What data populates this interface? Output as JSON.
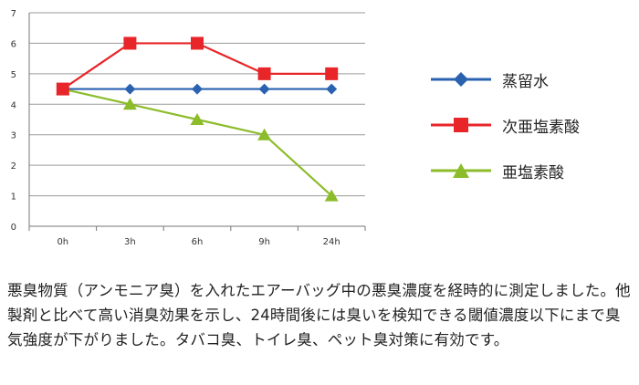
{
  "chart_data": {
    "type": "line",
    "categories": [
      "0h",
      "3h",
      "6h",
      "9h",
      "24h"
    ],
    "ylim": [
      0,
      7
    ],
    "yticks": [
      0,
      1,
      2,
      3,
      4,
      5,
      6,
      7
    ],
    "grid": true,
    "legend_position": "right",
    "series": [
      {
        "name": "蒸留水",
        "values": [
          4.5,
          4.5,
          4.5,
          4.5,
          4.5
        ],
        "color": "#2a62b0",
        "marker": "diamond"
      },
      {
        "name": "次亜塩素酸",
        "values": [
          4.5,
          6,
          6,
          5,
          5
        ],
        "color": "#e8262a",
        "marker": "square"
      },
      {
        "name": "亜塩素酸",
        "values": [
          4.5,
          4,
          3.5,
          3,
          1
        ],
        "color": "#8cbc2a",
        "marker": "triangle"
      }
    ]
  },
  "caption": "悪臭物質（アンモニア臭）を入れたエアーバッグ中の悪臭濃度を経時的に測定しました。他製剤と比べて高い消臭効果を示し、24時間後には臭いを検知できる閾値濃度以下にまで臭気強度が下がりました。タバコ臭、トイレ臭、ペット臭対策に有効です。"
}
